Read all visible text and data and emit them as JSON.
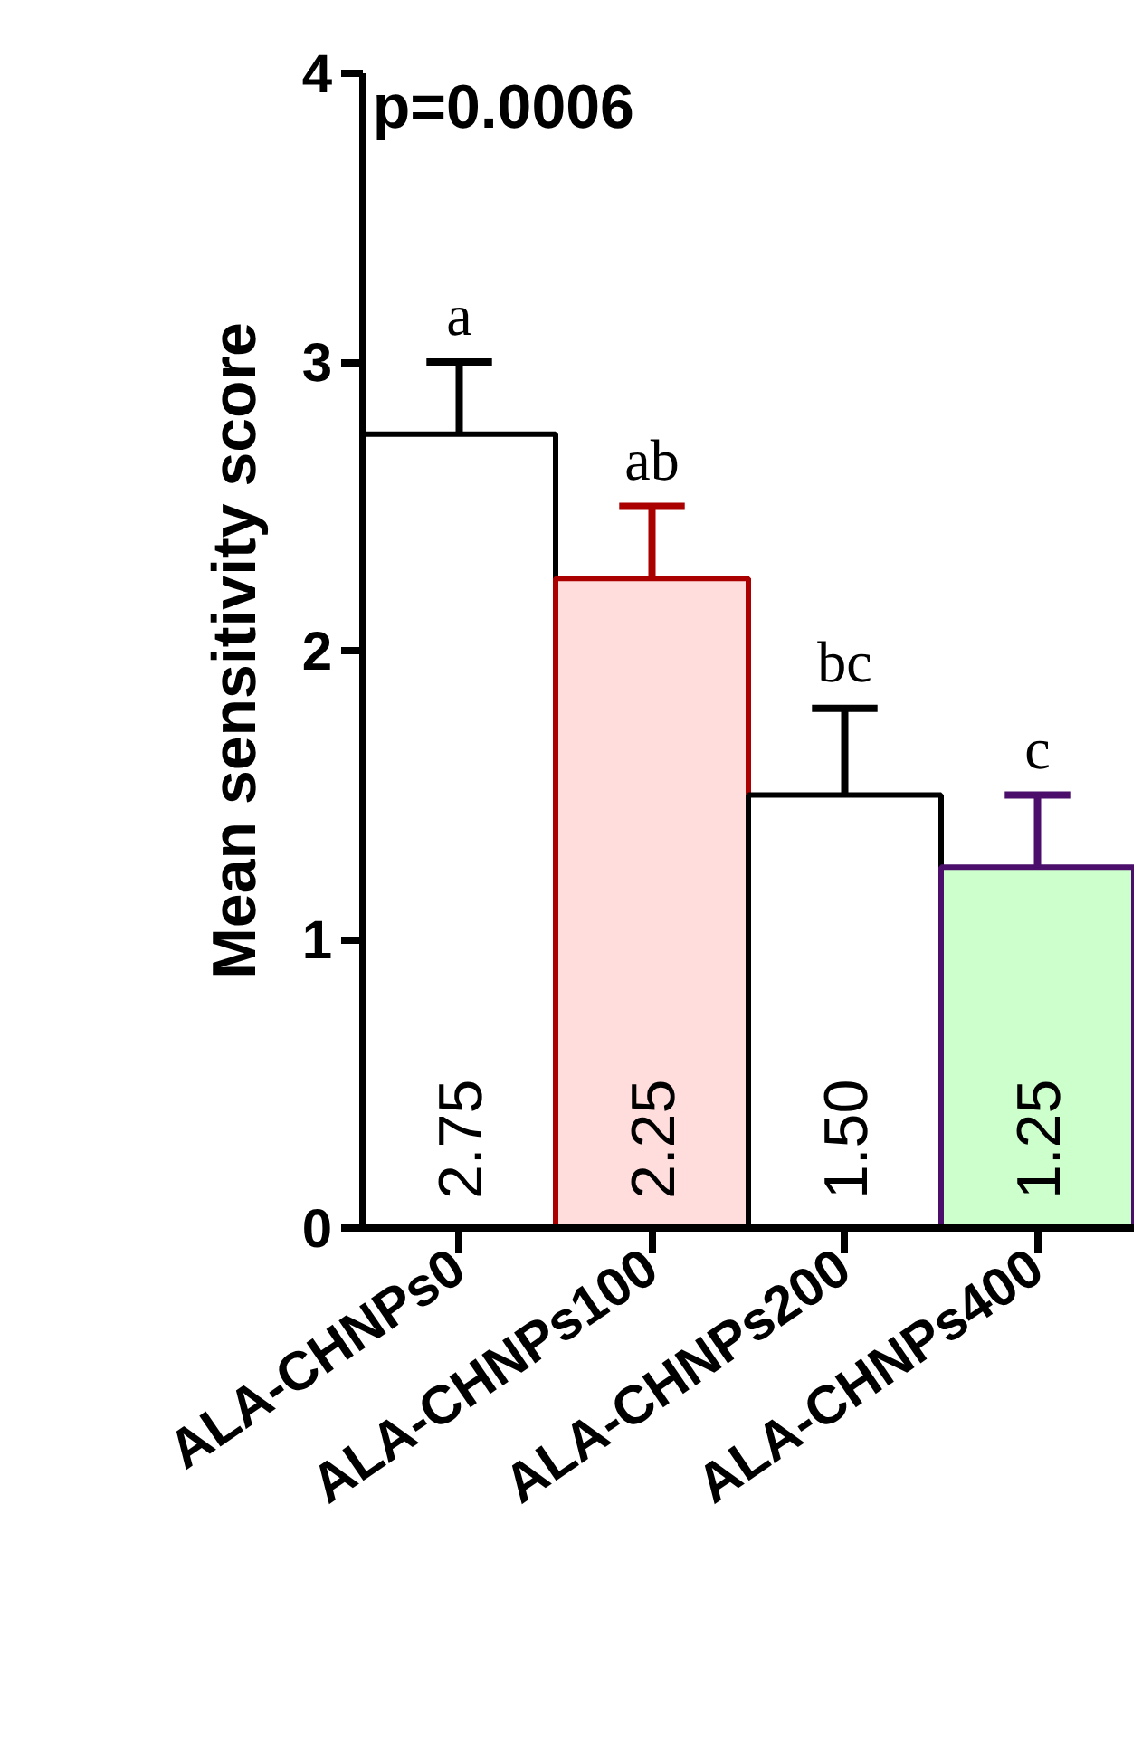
{
  "chart_data": {
    "type": "bar",
    "ylabel": "Mean sensitivity score",
    "categories": [
      "ALA-CHNPs0",
      "ALA-CHNPs100",
      "ALA-CHNPs200",
      "ALA-CHNPs400"
    ],
    "values": [
      2.75,
      2.25,
      1.5,
      1.25
    ],
    "colors": [
      "#ffffff",
      "#ffdddd",
      "#ffffff",
      "#ccffcc"
    ],
    "errors": [
      0.25,
      0.25,
      0.3,
      0.25
    ],
    "value_labels": [
      "2.75",
      "2.25",
      "1.50",
      "1.25"
    ],
    "ylim": [
      0,
      4
    ],
    "yticks": [
      0,
      1,
      2,
      3,
      4
    ],
    "grid": false,
    "annotations": [
      "p=0.0006",
      "a",
      "ab",
      "bc",
      "c"
    ]
  }
}
